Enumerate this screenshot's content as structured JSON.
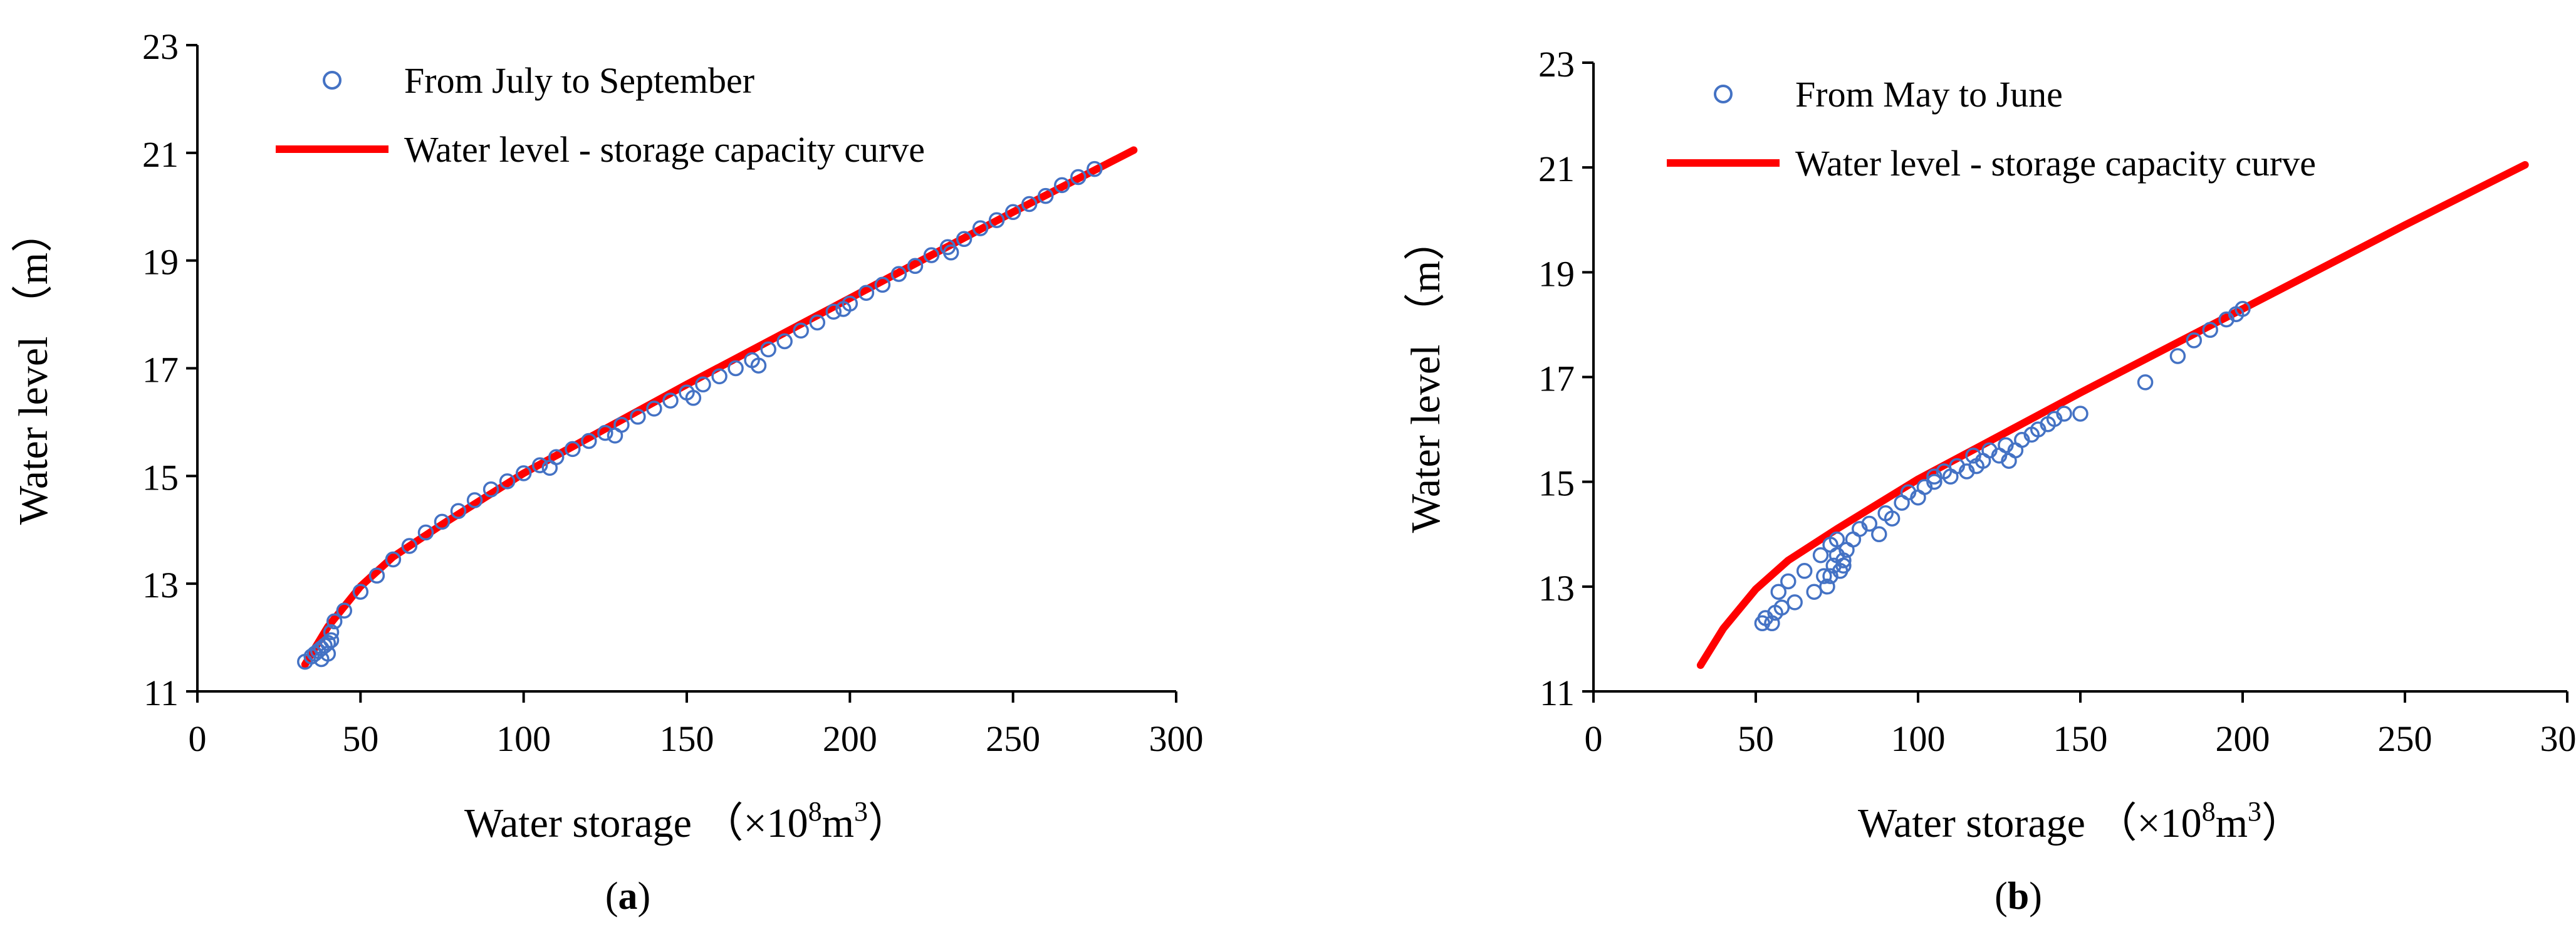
{
  "chart_data": [
    {
      "type": "scatter",
      "panel_label": "a",
      "title": "",
      "xlabel": "Water storage",
      "xlabel_unit": "（×10",
      "xlabel_unit_exp": "8",
      "xlabel_unit_rest": "m",
      "xlabel_unit_exp2": "3",
      "xlabel_unit_close": "）",
      "ylabel": "Water level （m）",
      "xlim": [
        0,
        300
      ],
      "ylim": [
        11,
        23
      ],
      "xticks": [
        0,
        50,
        100,
        150,
        200,
        250,
        300
      ],
      "yticks": [
        11,
        13,
        15,
        17,
        19,
        21,
        23
      ],
      "xtick_labels": [
        "0",
        "50",
        "100",
        "150",
        "200",
        "250",
        "300"
      ],
      "ytick_labels": [
        "11",
        "13",
        "15",
        "17",
        "19",
        "21",
        "23"
      ],
      "legend_position": "top-left",
      "series": [
        {
          "name": "From July to September",
          "kind": "scatter",
          "x": [
            33,
            35,
            36,
            37,
            38,
            39,
            40,
            41,
            42,
            45,
            50,
            55,
            60,
            65,
            70,
            75,
            80,
            85,
            90,
            95,
            100,
            105,
            110,
            115,
            120,
            125,
            130,
            135,
            140,
            145,
            150,
            155,
            160,
            165,
            170,
            175,
            180,
            185,
            190,
            195,
            200,
            205,
            210,
            215,
            220,
            225,
            230,
            235,
            240,
            245,
            250,
            255,
            260,
            265,
            270,
            275,
            38,
            40,
            41,
            108,
            128,
            152,
            172,
            198,
            231
          ],
          "y": [
            11.55,
            11.65,
            11.7,
            11.75,
            11.8,
            11.85,
            11.9,
            12.1,
            12.3,
            12.5,
            12.85,
            13.15,
            13.45,
            13.7,
            13.95,
            14.15,
            14.35,
            14.55,
            14.75,
            14.9,
            15.05,
            15.2,
            15.35,
            15.5,
            15.65,
            15.8,
            15.95,
            16.1,
            16.25,
            16.4,
            16.55,
            16.7,
            16.85,
            17.0,
            17.15,
            17.35,
            17.5,
            17.7,
            17.85,
            18.05,
            18.2,
            18.4,
            18.55,
            18.75,
            18.9,
            19.1,
            19.25,
            19.4,
            19.6,
            19.75,
            19.9,
            20.05,
            20.2,
            20.4,
            20.55,
            20.7,
            11.6,
            11.7,
            11.95,
            15.15,
            15.75,
            16.45,
            17.05,
            18.1,
            19.15
          ]
        },
        {
          "name": "Water level - storage capacity curve",
          "kind": "line",
          "color": "#ff0000",
          "x": [
            33,
            40,
            50,
            60,
            75,
            100,
            150,
            200,
            250,
            287
          ],
          "y": [
            11.5,
            12.2,
            12.95,
            13.5,
            14.1,
            15.05,
            16.7,
            18.3,
            19.9,
            21.05
          ]
        }
      ]
    },
    {
      "type": "scatter",
      "panel_label": "b",
      "title": "",
      "xlabel": "Water storage",
      "xlabel_unit": "（×10",
      "xlabel_unit_exp": "8",
      "xlabel_unit_rest": "m",
      "xlabel_unit_exp2": "3",
      "xlabel_unit_close": "）",
      "ylabel": "Water level （m）",
      "xlim": [
        0,
        300
      ],
      "ylim": [
        11,
        23
      ],
      "xticks": [
        0,
        50,
        100,
        150,
        200,
        250,
        300
      ],
      "yticks": [
        11,
        13,
        15,
        17,
        19,
        21,
        23
      ],
      "xtick_labels": [
        "0",
        "50",
        "100",
        "150",
        "200",
        "250",
        "300"
      ],
      "ytick_labels": [
        "11",
        "13",
        "15",
        "17",
        "19",
        "21",
        "23"
      ],
      "legend_position": "top-left",
      "series": [
        {
          "name": "From May to June",
          "kind": "scatter",
          "x": [
            52,
            53,
            55,
            56,
            57,
            58,
            60,
            62,
            65,
            68,
            70,
            71,
            72,
            73,
            74,
            75,
            76,
            77,
            78,
            80,
            82,
            85,
            88,
            90,
            92,
            95,
            97,
            100,
            102,
            105,
            108,
            110,
            112,
            115,
            117,
            120,
            122,
            125,
            127,
            130,
            132,
            135,
            137,
            140,
            142,
            145,
            150,
            170,
            180,
            185,
            190,
            195,
            198,
            200,
            73,
            75,
            77,
            105,
            118,
            128
          ],
          "y": [
            12.3,
            12.4,
            12.3,
            12.5,
            12.9,
            12.6,
            13.1,
            12.7,
            13.3,
            12.9,
            13.6,
            13.2,
            13.0,
            13.8,
            13.4,
            13.9,
            13.3,
            13.5,
            13.7,
            13.9,
            14.1,
            14.2,
            14.0,
            14.4,
            14.3,
            14.6,
            14.8,
            14.7,
            14.9,
            15.0,
            15.2,
            15.1,
            15.3,
            15.2,
            15.5,
            15.4,
            15.6,
            15.5,
            15.7,
            15.6,
            15.8,
            15.9,
            16.0,
            16.1,
            16.2,
            16.3,
            16.3,
            16.9,
            17.4,
            17.7,
            17.9,
            18.1,
            18.2,
            18.3,
            13.2,
            13.6,
            13.4,
            15.1,
            15.3,
            15.4
          ]
        },
        {
          "name": "Water level - storage capacity curve",
          "kind": "line",
          "color": "#ff0000",
          "x": [
            33,
            40,
            50,
            60,
            75,
            100,
            150,
            200,
            250,
            287
          ],
          "y": [
            11.5,
            12.2,
            12.95,
            13.5,
            14.1,
            15.05,
            16.7,
            18.3,
            19.9,
            21.05
          ]
        }
      ]
    }
  ],
  "colors": {
    "scatter": "#4472c4",
    "line": "#ff0000",
    "axis": "#000000"
  }
}
